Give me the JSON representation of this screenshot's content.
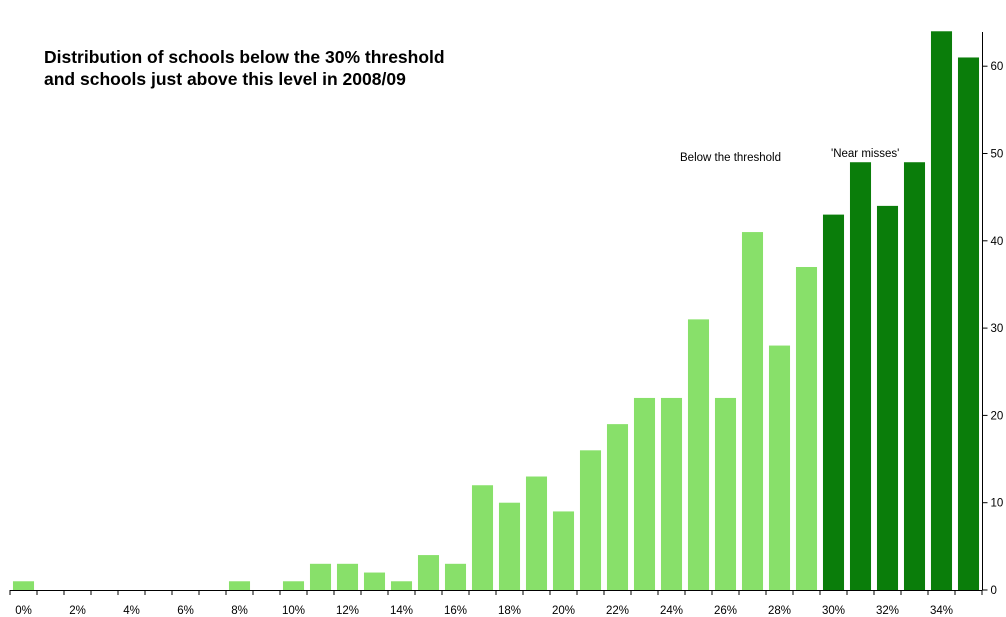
{
  "chart_data": {
    "type": "bar",
    "title_line1": "Distribution of schools below the 30% threshold",
    "title_line2": "and schools just above this level in 2008/09",
    "categories": [
      "0%",
      "1%",
      "2%",
      "3%",
      "4%",
      "5%",
      "6%",
      "7%",
      "8%",
      "9%",
      "10%",
      "11%",
      "12%",
      "13%",
      "14%",
      "15%",
      "16%",
      "17%",
      "18%",
      "19%",
      "20%",
      "21%",
      "22%",
      "23%",
      "24%",
      "25%",
      "26%",
      "27%",
      "28%",
      "29%",
      "30%",
      "31%",
      "32%",
      "33%",
      "34%",
      "35%"
    ],
    "x_tick_labels": [
      "0%",
      "2%",
      "4%",
      "6%",
      "8%",
      "10%",
      "12%",
      "14%",
      "16%",
      "18%",
      "20%",
      "22%",
      "24%",
      "26%",
      "28%",
      "30%",
      "32%",
      "34%"
    ],
    "values": [
      1,
      0,
      0,
      0,
      0,
      0,
      0,
      0,
      1,
      0,
      1,
      3,
      3,
      2,
      1,
      4,
      3,
      12,
      10,
      13,
      9,
      16,
      19,
      22,
      22,
      31,
      22,
      41,
      28,
      37,
      43,
      49,
      44,
      49,
      64,
      61
    ],
    "groups": [
      {
        "label": "Below the threshold",
        "from": "0%",
        "to": "29%",
        "color": "#88e06a"
      },
      {
        "label": "'Near misses'",
        "from": "30%",
        "to": "35%",
        "color": "#0a7d0a"
      }
    ],
    "ylim": [
      0,
      65
    ],
    "y_tick_labels": [
      "0",
      "10",
      "20",
      "30",
      "40",
      "50",
      "60"
    ],
    "y_axis_position": "right",
    "grid": false,
    "legend": "none"
  }
}
